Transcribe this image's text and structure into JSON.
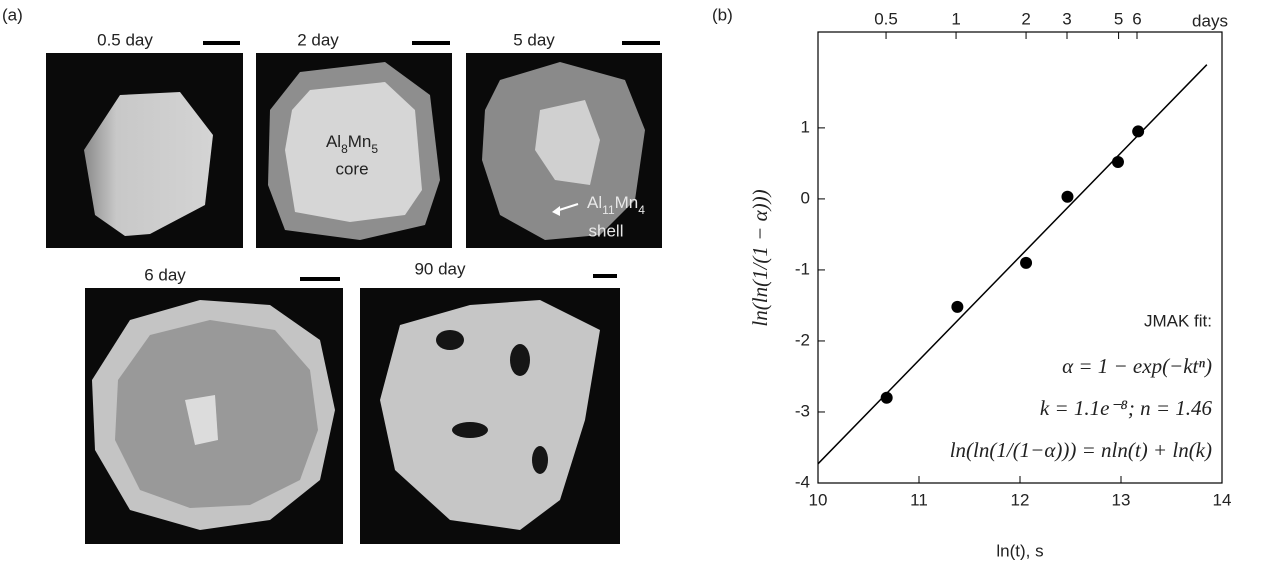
{
  "panel_a": {
    "label": "(a)",
    "images": [
      {
        "title": "0.5 day"
      },
      {
        "title": "2 day"
      },
      {
        "title": "5 day"
      },
      {
        "title": "6 day"
      },
      {
        "title": "90 day"
      }
    ],
    "core_label": {
      "phase": [
        "Al",
        "8",
        "Mn",
        "5"
      ],
      "word": "core"
    },
    "shell_label": {
      "phase": [
        "Al",
        "11",
        "Mn",
        "4"
      ],
      "word": "shell"
    }
  },
  "chart_data": {
    "type": "scatter",
    "panel_label": "(b)",
    "x_label": "ln(t), s",
    "y_label": "ln(ln(1/(1 − α)))",
    "x2_label": "days",
    "x": [
      10.68,
      11.38,
      12.06,
      12.47,
      12.97,
      13.17
    ],
    "values": [
      -2.8,
      -1.52,
      -0.9,
      0.03,
      0.52,
      0.95
    ],
    "color": "#000000",
    "fit_line": {
      "x": [
        10,
        13.85
      ],
      "y": [
        -3.73,
        1.89
      ]
    },
    "xlim": [
      10,
      14
    ],
    "xticks": [
      10,
      11,
      12,
      13,
      14
    ],
    "ylim": [
      -4,
      2.35
    ],
    "yticks": [
      -4,
      -3,
      -2,
      -1,
      0,
      1
    ],
    "x2lim": [
      0.2549,
      13.919
    ],
    "x2_log": true,
    "x2ticks": [
      0.5,
      1,
      2,
      3,
      5,
      6
    ],
    "annotations": [
      "JMAK fit:",
      "α = 1 − exp(−ktⁿ)",
      "k = 1.1e⁻⁸; n = 1.46",
      "ln(ln(1/(1−α))) = nln(t) + ln(k)"
    ]
  }
}
